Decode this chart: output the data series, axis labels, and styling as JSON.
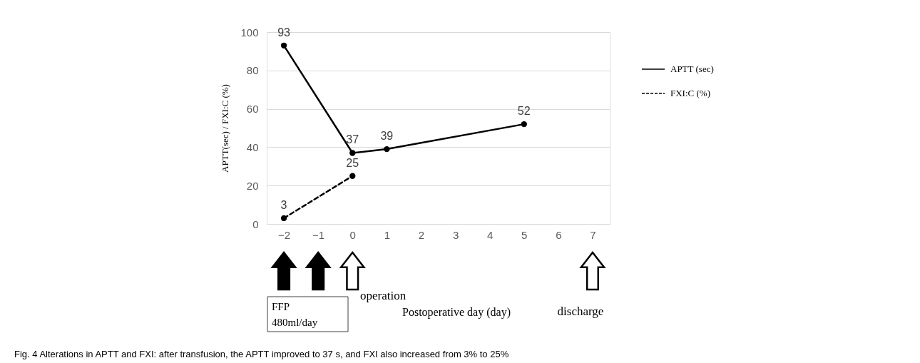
{
  "chart_data": {
    "type": "line",
    "ylabel": "APTT(sec) / FXI:C (%)",
    "xlim": [
      -2.5,
      7.5
    ],
    "xticks": [
      -2,
      -1,
      0,
      1,
      2,
      3,
      4,
      5,
      6,
      7
    ],
    "ylim": [
      0,
      100
    ],
    "yticks": [
      0,
      20,
      40,
      60,
      80,
      100
    ],
    "grid": "y",
    "legend": "right",
    "marker": "circle",
    "data_labels": true,
    "series": [
      {
        "name": "APTT (sec)",
        "color": "#000000",
        "line_style": "solid",
        "x": [
          -2,
          0,
          1,
          5
        ],
        "values": [
          93,
          37,
          39,
          52
        ]
      },
      {
        "name": "FXI:C (%)",
        "color": "#000000",
        "line_style": "dashed",
        "x": [
          -2,
          0
        ],
        "values": [
          3,
          25
        ]
      }
    ],
    "annotations": [
      "operation",
      "discharge",
      "FFP\n480ml/day",
      "Postoperative day (day)",
      "Fig. 4 Alterations in APTT and FXI: after transfusion, the APTT improved to 37 s, and FXI also increased from 3% to 25%"
    ]
  }
}
